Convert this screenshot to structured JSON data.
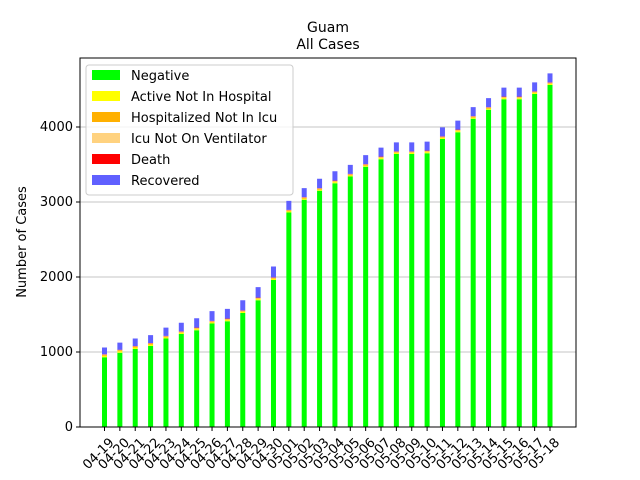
{
  "chart_data": {
    "type": "bar",
    "stacked": true,
    "title": "Guam",
    "subtitle": "All Cases",
    "xlabel": "",
    "ylabel": "Number of Cases",
    "ylim": [
      0,
      4920
    ],
    "yticks": [
      0,
      1000,
      2000,
      3000,
      4000
    ],
    "grid": "horizontal",
    "legend_position": "top-left",
    "categories": [
      "04-19",
      "04-20",
      "04-21",
      "04-22",
      "04-23",
      "04-24",
      "04-25",
      "04-26",
      "04-27",
      "04-28",
      "04-29",
      "04-30",
      "05-01",
      "05-02",
      "05-03",
      "05-04",
      "05-05",
      "05-06",
      "05-07",
      "05-08",
      "05-09",
      "05-10",
      "05-11",
      "05-12",
      "05-13",
      "05-14",
      "05-15",
      "05-16",
      "05-17",
      "05-18"
    ],
    "series": [
      {
        "name": "Negative",
        "color": "#00ff00",
        "values": [
          930,
          990,
          1040,
          1080,
          1180,
          1240,
          1290,
          1380,
          1410,
          1520,
          1690,
          1960,
          2860,
          3030,
          3150,
          3250,
          3340,
          3470,
          3570,
          3640,
          3640,
          3650,
          3840,
          3930,
          4110,
          4230,
          4370,
          4370,
          4440,
          4560
        ]
      },
      {
        "name": "Active Not In Hospital",
        "color": "#ffff00",
        "values": [
          20,
          20,
          20,
          20,
          15,
          15,
          15,
          15,
          15,
          15,
          15,
          15,
          15,
          15,
          15,
          15,
          15,
          15,
          15,
          15,
          15,
          15,
          15,
          15,
          15,
          15,
          15,
          15,
          15,
          15
        ]
      },
      {
        "name": "Hospitalized Not In Icu",
        "color": "#ffb000",
        "values": [
          10,
          10,
          10,
          10,
          10,
          10,
          10,
          10,
          10,
          10,
          10,
          10,
          10,
          10,
          10,
          10,
          10,
          10,
          10,
          10,
          10,
          10,
          10,
          10,
          10,
          10,
          10,
          10,
          10,
          10
        ]
      },
      {
        "name": "Icu Not On Ventilator",
        "color": "#ffd27f",
        "values": [
          5,
          5,
          5,
          5,
          5,
          5,
          5,
          5,
          5,
          5,
          5,
          5,
          5,
          5,
          5,
          5,
          5,
          5,
          5,
          5,
          5,
          5,
          5,
          5,
          5,
          5,
          5,
          5,
          5,
          5
        ]
      },
      {
        "name": "Death",
        "color": "#ff0000",
        "values": [
          5,
          5,
          5,
          5,
          5,
          5,
          5,
          5,
          5,
          5,
          5,
          5,
          5,
          5,
          5,
          5,
          5,
          5,
          5,
          5,
          5,
          5,
          5,
          5,
          5,
          5,
          5,
          5,
          5,
          5
        ]
      },
      {
        "name": "Recovered",
        "color": "#6060ff",
        "values": [
          90,
          95,
          100,
          105,
          110,
          115,
          125,
          130,
          130,
          135,
          140,
          145,
          120,
          120,
          125,
          125,
          120,
          120,
          120,
          120,
          120,
          120,
          120,
          120,
          120,
          120,
          120,
          120,
          120,
          120
        ]
      }
    ]
  }
}
